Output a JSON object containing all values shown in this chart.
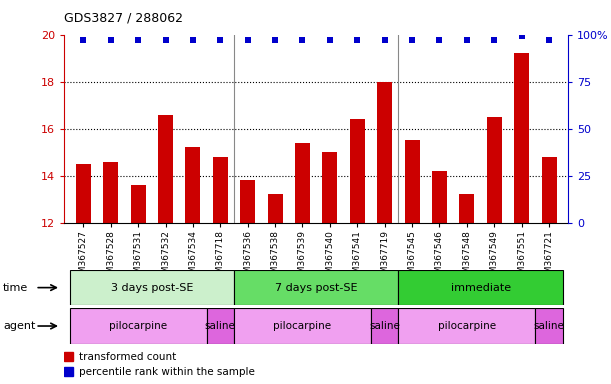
{
  "title": "GDS3827 / 288062",
  "samples": [
    "GSM367527",
    "GSM367528",
    "GSM367531",
    "GSM367532",
    "GSM367534",
    "GSM367718",
    "GSM367536",
    "GSM367538",
    "GSM367539",
    "GSM367540",
    "GSM367541",
    "GSM367719",
    "GSM367545",
    "GSM367546",
    "GSM367548",
    "GSM367549",
    "GSM367551",
    "GSM367721"
  ],
  "bar_values": [
    14.5,
    14.6,
    13.6,
    16.6,
    15.2,
    14.8,
    13.8,
    13.2,
    15.4,
    15.0,
    16.4,
    18.0,
    15.5,
    14.2,
    13.2,
    16.5,
    19.2,
    14.8
  ],
  "dot_percentiles": [
    97,
    97,
    97,
    97,
    97,
    97,
    97,
    97,
    97,
    97,
    97,
    97,
    97,
    97,
    97,
    97,
    99,
    97
  ],
  "bar_color": "#cc0000",
  "dot_color": "#0000cc",
  "ylim_left": [
    12,
    20
  ],
  "ylim_right": [
    0,
    100
  ],
  "yticks_left": [
    12,
    14,
    16,
    18,
    20
  ],
  "yticks_right": [
    0,
    25,
    50,
    75,
    100
  ],
  "ytick_labels_right": [
    "0",
    "25",
    "50",
    "75",
    "100%"
  ],
  "time_groups": [
    {
      "label": "3 days post-SE",
      "start": 0,
      "end": 5,
      "color": "#ccf0cc"
    },
    {
      "label": "7 days post-SE",
      "start": 6,
      "end": 11,
      "color": "#66dd66"
    },
    {
      "label": "immediate",
      "start": 12,
      "end": 17,
      "color": "#33cc33"
    }
  ],
  "agent_groups": [
    {
      "label": "pilocarpine",
      "start": 0,
      "end": 4,
      "color": "#f0a0f0"
    },
    {
      "label": "saline",
      "start": 5,
      "end": 5,
      "color": "#dd66dd"
    },
    {
      "label": "pilocarpine",
      "start": 6,
      "end": 10,
      "color": "#f0a0f0"
    },
    {
      "label": "saline",
      "start": 11,
      "end": 11,
      "color": "#dd66dd"
    },
    {
      "label": "pilocarpine",
      "start": 12,
      "end": 16,
      "color": "#f0a0f0"
    },
    {
      "label": "saline",
      "start": 17,
      "end": 17,
      "color": "#dd66dd"
    }
  ],
  "time_label": "time",
  "agent_label": "agent",
  "legend_bar": "transformed count",
  "legend_dot": "percentile rank within the sample",
  "bar_width": 0.55,
  "group_separators": [
    5.5,
    11.5
  ],
  "background_color": "#ffffff",
  "plot_bg_color": "#ffffff",
  "tick_color_left": "#cc0000",
  "tick_color_right": "#0000cc"
}
